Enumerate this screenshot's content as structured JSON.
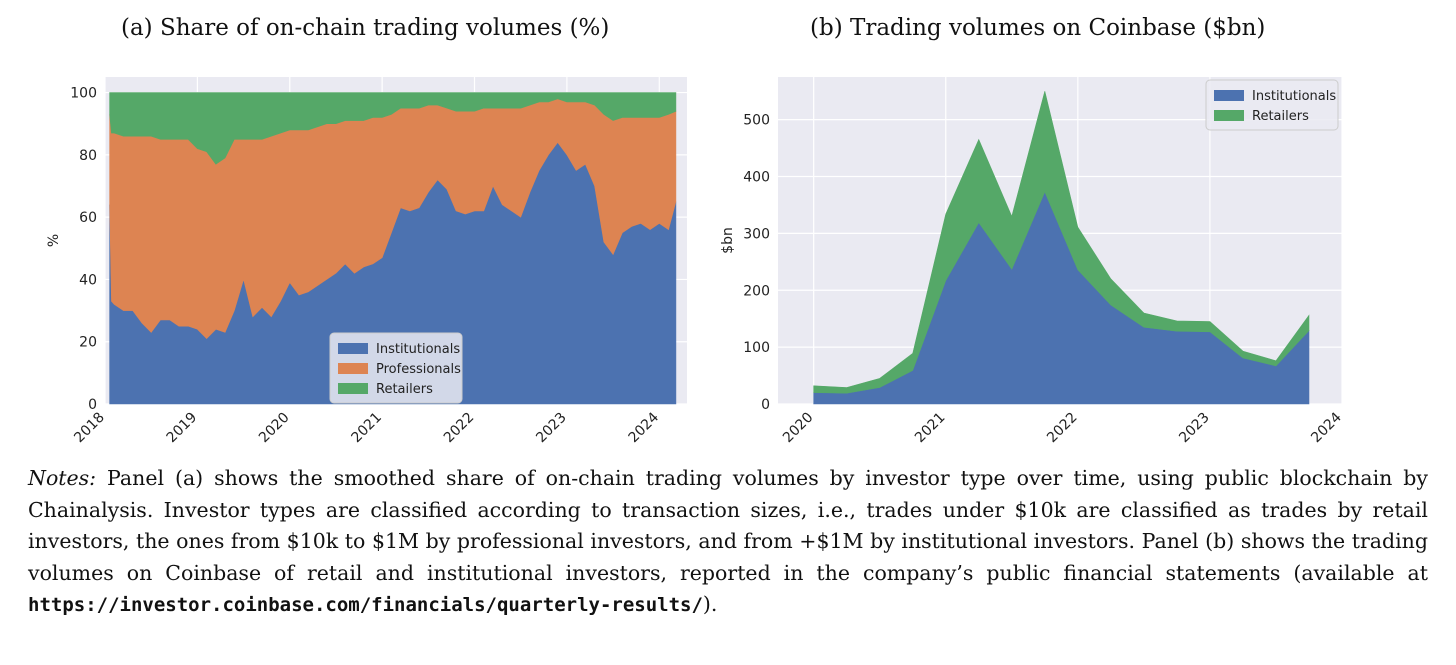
{
  "colors": {
    "institutionals": "#4c72b0",
    "professionals": "#dd8452",
    "retailers": "#55a868",
    "plot_bg": "#eaeaf2",
    "grid": "#ffffff"
  },
  "panel_a": {
    "title": "(a) Share of on-chain trading volumes (%)"
  },
  "panel_b": {
    "title": "(b) Trading volumes on Coinbase ($bn)"
  },
  "notes": {
    "label": "Notes:",
    "text": "Panel (a) shows the smoothed share of on-chain trading volumes by investor type over time, using public blockchain by Chainalysis. Investor types are classified according to transaction sizes, i.e., trades under $10k are classified as trades by retail investors, the ones from $10k to $1M by professional investors, and from +$1M by institutional investors. Panel (b) shows the trading volumes on Coinbase of retail and institutional investors, reported in the company’s public financial statements (available at",
    "url": "https://investor.coinbase.com/financials/quarterly-results/",
    "end": ")."
  },
  "chart_data": [
    {
      "type": "area",
      "stacked": true,
      "title": "(a) Share of on-chain trading volumes (%)",
      "xlabel": "",
      "ylabel": "%",
      "xlim": [
        2018.0,
        2024.3
      ],
      "ylim": [
        0,
        105
      ],
      "xticks": [
        2018,
        2019,
        2020,
        2021,
        2022,
        2023,
        2024
      ],
      "yticks": [
        0,
        20,
        40,
        60,
        80,
        100
      ],
      "grid": true,
      "legend": {
        "position": "bottom-right"
      },
      "x": [
        2018.05,
        2018.07,
        2018.1,
        2018.2,
        2018.3,
        2018.4,
        2018.5,
        2018.6,
        2018.7,
        2018.8,
        2018.9,
        2019.0,
        2019.1,
        2019.2,
        2019.3,
        2019.4,
        2019.5,
        2019.6,
        2019.7,
        2019.8,
        2019.9,
        2020.0,
        2020.1,
        2020.2,
        2020.3,
        2020.4,
        2020.5,
        2020.6,
        2020.7,
        2020.8,
        2020.9,
        2021.0,
        2021.1,
        2021.2,
        2021.3,
        2021.4,
        2021.5,
        2021.6,
        2021.7,
        2021.8,
        2021.9,
        2022.0,
        2022.1,
        2022.2,
        2022.3,
        2022.4,
        2022.5,
        2022.6,
        2022.7,
        2022.8,
        2022.9,
        2023.0,
        2023.1,
        2023.2,
        2023.3,
        2023.4,
        2023.5,
        2023.6,
        2023.7,
        2023.8,
        2023.9,
        2024.0,
        2024.1,
        2024.18
      ],
      "series": [
        {
          "name": "Institutionals",
          "values": [
            64,
            33,
            32,
            30,
            30,
            26,
            23,
            27,
            27,
            25,
            25,
            24,
            21,
            24,
            23,
            30,
            40,
            28,
            31,
            28,
            33,
            39,
            35,
            36,
            38,
            40,
            42,
            45,
            42,
            44,
            45,
            47,
            55,
            63,
            62,
            63,
            68,
            72,
            69,
            62,
            61,
            62,
            62,
            70,
            64,
            62,
            60,
            68,
            75,
            80,
            84,
            80,
            75,
            77,
            70,
            52,
            48,
            55,
            57,
            58,
            56,
            58,
            56,
            65
          ]
        },
        {
          "name": "Professionals",
          "values": [
            29,
            54,
            55,
            56,
            56,
            60,
            63,
            58,
            58,
            60,
            60,
            58,
            60,
            53,
            56,
            55,
            45,
            57,
            54,
            58,
            54,
            49,
            53,
            52,
            51,
            50,
            48,
            46,
            49,
            47,
            47,
            45,
            38,
            32,
            33,
            32,
            28,
            24,
            26,
            32,
            33,
            32,
            33,
            25,
            31,
            33,
            35,
            28,
            22,
            17,
            14,
            17,
            22,
            20,
            26,
            41,
            43,
            37,
            35,
            34,
            36,
            34,
            37,
            29
          ]
        },
        {
          "name": "Retailers",
          "values": [
            7,
            13,
            13,
            14,
            14,
            14,
            14,
            15,
            15,
            15,
            15,
            18,
            19,
            23,
            21,
            15,
            15,
            15,
            15,
            14,
            13,
            12,
            12,
            12,
            11,
            10,
            10,
            9,
            9,
            9,
            8,
            8,
            7,
            5,
            5,
            5,
            4,
            4,
            5,
            6,
            6,
            6,
            5,
            5,
            5,
            5,
            5,
            4,
            3,
            3,
            2,
            3,
            3,
            3,
            4,
            7,
            9,
            8,
            8,
            8,
            8,
            8,
            7,
            6
          ]
        }
      ]
    },
    {
      "type": "area",
      "stacked": true,
      "title": "(b) Trading volumes on Coinbase ($bn)",
      "xlabel": "",
      "ylabel": "$bn",
      "xlim": [
        2019.73,
        2024.0
      ],
      "ylim": [
        0,
        575
      ],
      "xticks": [
        2020,
        2021,
        2022,
        2023,
        2024
      ],
      "yticks": [
        0,
        100,
        200,
        300,
        400,
        500
      ],
      "grid": true,
      "legend": {
        "position": "top-right"
      },
      "x": [
        2020.0,
        2020.25,
        2020.5,
        2020.75,
        2021.0,
        2021.25,
        2021.5,
        2021.75,
        2022.0,
        2022.25,
        2022.5,
        2022.75,
        2023.0,
        2023.25,
        2023.5,
        2023.75
      ],
      "series": [
        {
          "name": "Institutionals",
          "values": [
            20,
            19,
            29,
            59,
            217,
            319,
            237,
            373,
            236,
            174,
            135,
            128,
            127,
            81,
            67,
            129
          ]
        },
        {
          "name": "Retailers",
          "values": [
            12,
            10,
            16,
            30,
            117,
            146,
            93,
            177,
            75,
            46,
            25,
            18,
            18,
            12,
            9,
            27
          ]
        }
      ]
    }
  ]
}
